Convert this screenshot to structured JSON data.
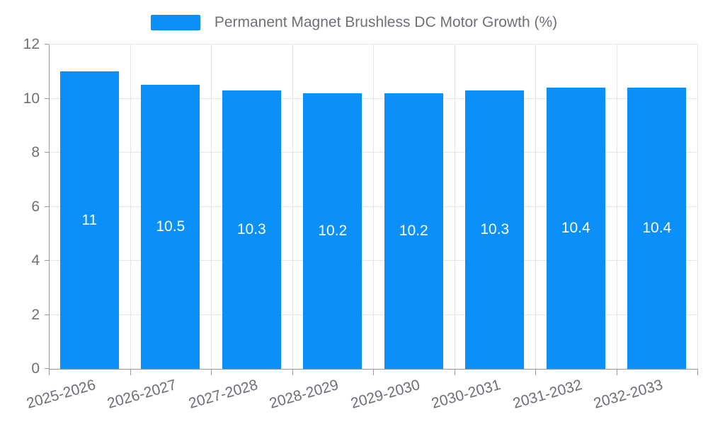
{
  "legend": {
    "label": "Permanent Magnet Brushless DC Motor Growth (%)"
  },
  "chart_data": {
    "type": "bar",
    "title": "",
    "series_name": "Permanent Magnet Brushless DC Motor Growth (%)",
    "categories": [
      "2025-2026",
      "2026-2027",
      "2027-2028",
      "2028-2029",
      "2029-2030",
      "2030-2031",
      "2031-2032",
      "2032-2033"
    ],
    "values": [
      11,
      10.5,
      10.3,
      10.2,
      10.2,
      10.3,
      10.4,
      10.4
    ],
    "xlabel": "",
    "ylabel": "",
    "ylim": [
      0,
      12
    ],
    "yticks": [
      0,
      2,
      4,
      6,
      8,
      10,
      12
    ],
    "grid": true,
    "legend_position": "top",
    "bar_color": "#0a90f8",
    "bar_label_color": "#ffffff",
    "axis_text_color": "#6e7079",
    "axis_line_color": "#999999",
    "grid_color": "#e5e5e5",
    "x_label_rotation_deg": -16
  }
}
